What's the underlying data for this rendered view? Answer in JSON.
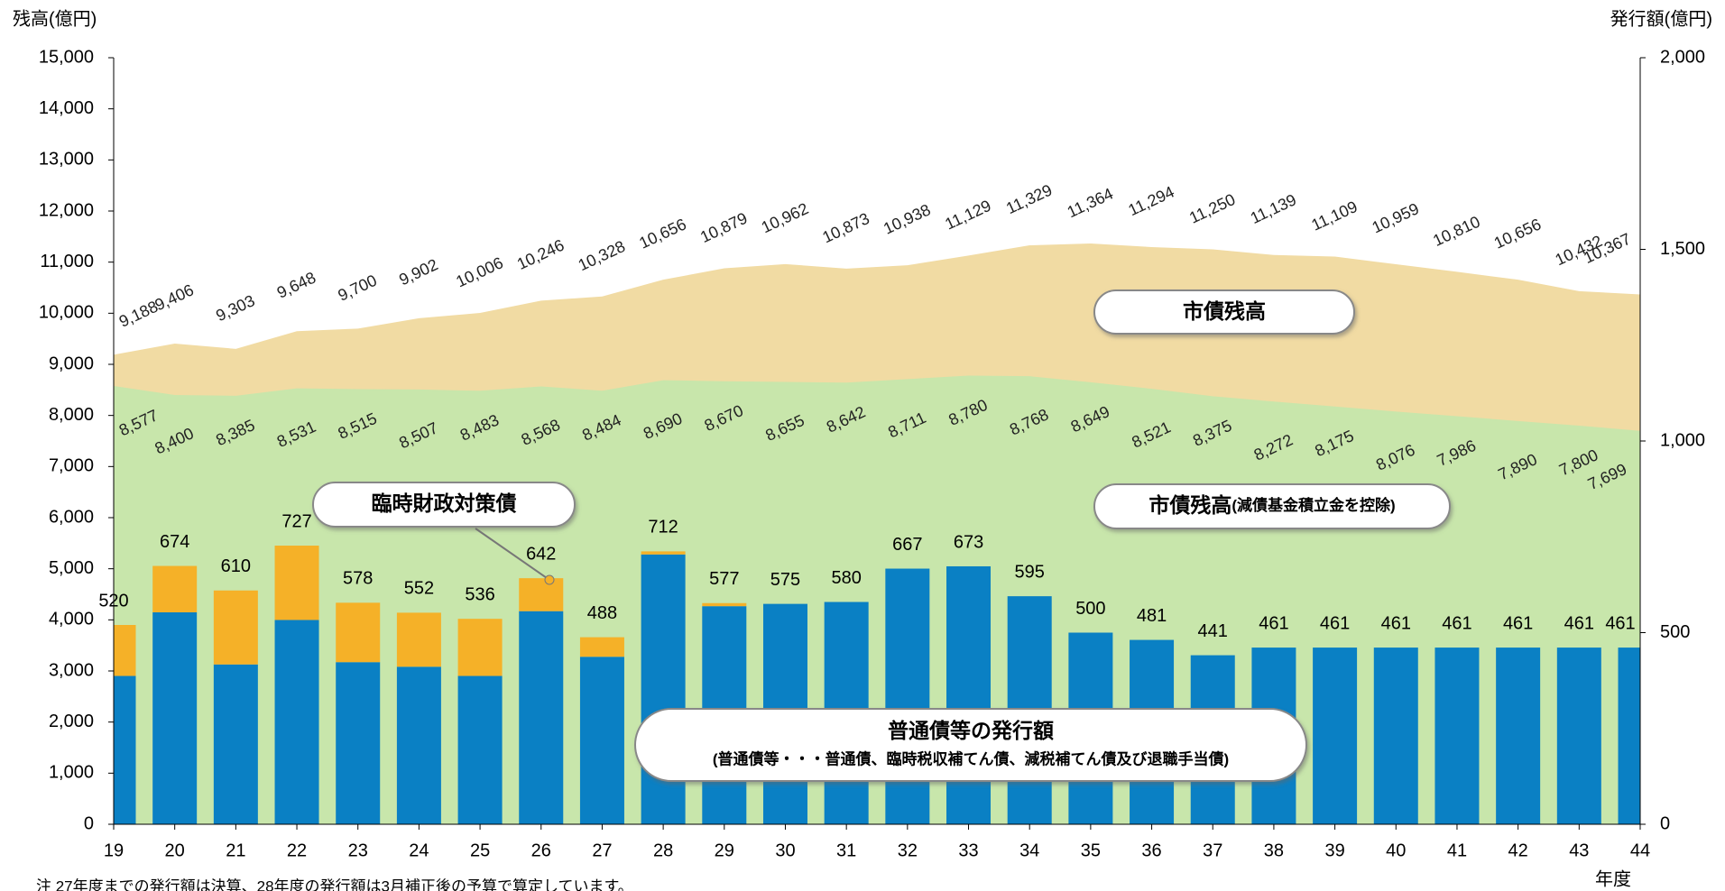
{
  "chart_data": {
    "type": "combo",
    "ylabel": "残高(億円)",
    "y2label": "発行額(億円)",
    "xlabel": "年度",
    "note": "注 27年度までの発行額は決算、28年度の発行額は3月補正後の予算で算定しています。",
    "categories": [
      "19",
      "20",
      "21",
      "22",
      "23",
      "24",
      "25",
      "26",
      "27",
      "28",
      "29",
      "30",
      "31",
      "32",
      "33",
      "34",
      "35",
      "36",
      "37",
      "38",
      "39",
      "40",
      "41",
      "42",
      "43",
      "44"
    ],
    "ylim": [
      0,
      15000
    ],
    "yticks": [
      0,
      {
        "value": 1000,
        "label": "1,000"
      },
      {
        "value": 2000,
        "label": "2,000"
      },
      {
        "value": 3000,
        "label": "3,000"
      },
      {
        "value": 4000,
        "label": "4,000"
      },
      {
        "value": 5000,
        "label": "5,000"
      },
      {
        "value": 6000,
        "label": "6,000"
      },
      {
        "value": 7000,
        "label": "7,000"
      },
      {
        "value": 8000,
        "label": "8,000"
      },
      {
        "value": 9000,
        "label": "9,000"
      },
      {
        "value": 10000,
        "label": "10,000"
      },
      {
        "value": 11000,
        "label": "11,000"
      },
      {
        "value": 12000,
        "label": "12,000"
      },
      {
        "value": 13000,
        "label": "13,000"
      },
      {
        "value": 14000,
        "label": "14,000"
      },
      {
        "value": 15000,
        "label": "15,000"
      }
    ],
    "y2lim": [
      0,
      2000
    ],
    "y2ticks": [
      0,
      500,
      {
        "value": 1000,
        "label": "1,000"
      },
      {
        "value": 1500,
        "label": "1,500"
      },
      {
        "value": 2000,
        "label": "2,000"
      }
    ],
    "series": [
      {
        "name": "市債残高",
        "kind": "area",
        "color": "#f1dba3",
        "label_side": "above",
        "values": [
          9188,
          9406,
          9303,
          9648,
          9700,
          9902,
          10006,
          10246,
          10328,
          10656,
          10879,
          10962,
          10873,
          10938,
          11129,
          11329,
          11364,
          11294,
          11250,
          11139,
          11109,
          10959,
          10810,
          10656,
          10432,
          10367
        ],
        "value_labels": [
          "9,188",
          "9,406",
          "9,303",
          "9,648",
          "9,700",
          "9,902",
          "10,006",
          "10,246",
          "10,328",
          "10,656",
          "10,879",
          "10,962",
          "10,873",
          "10,938",
          "11,129",
          "11,329",
          "11,364",
          "11,294",
          "11,250",
          "11,139",
          "11,109",
          "10,959",
          "10,810",
          "10,656",
          "10,432",
          "10,367"
        ]
      },
      {
        "name": "市債残高",
        "note": "(減債基金積立金を控除)",
        "kind": "area",
        "color": "#c8e6ab",
        "label_side": "below",
        "values": [
          8577,
          8400,
          8385,
          8531,
          8515,
          8507,
          8483,
          8568,
          8484,
          8690,
          8670,
          8655,
          8642,
          8711,
          8780,
          8768,
          8649,
          8521,
          8375,
          8272,
          8175,
          8076,
          7986,
          7890,
          7800,
          7699
        ],
        "value_labels": [
          "8,577",
          "8,400",
          "8,385",
          "8,531",
          "8,515",
          "8,507",
          "8,483",
          "8,568",
          "8,484",
          "8,690",
          "8,670",
          "8,655",
          "8,642",
          "8,711",
          "8,780",
          "8,768",
          "8,649",
          "8,521",
          "8,375",
          "8,272",
          "8,175",
          "8,076",
          "7,986",
          "7,890",
          "7,800",
          "7,699"
        ]
      },
      {
        "name": "普通債等の発行額",
        "note": "(普通債等・・・普通債、臨時税収補てん債、減税補てん債及び退職手当債)",
        "kind": "bar",
        "axis": "y2",
        "color": "#0a80c4",
        "values": [
          387,
          553,
          417,
          533,
          423,
          411,
          387,
          556,
          437,
          704,
          569,
          575,
          580,
          667,
          673,
          595,
          500,
          481,
          441,
          461,
          461,
          461,
          461,
          461,
          461,
          461
        ]
      },
      {
        "name": "臨時財政対策債",
        "kind": "bar",
        "axis": "y2",
        "color": "#f5b128",
        "values": [
          133,
          121,
          193,
          194,
          155,
          141,
          149,
          86,
          51,
          8,
          8,
          0,
          0,
          0,
          0,
          0,
          0,
          0,
          0,
          0,
          0,
          0,
          0,
          0,
          0,
          0
        ]
      }
    ],
    "total_labels": [
      520,
      674,
      610,
      727,
      578,
      552,
      536,
      642,
      488,
      712,
      577,
      575,
      580,
      667,
      673,
      595,
      500,
      481,
      441,
      461,
      461,
      461,
      461,
      461,
      461,
      461
    ]
  }
}
